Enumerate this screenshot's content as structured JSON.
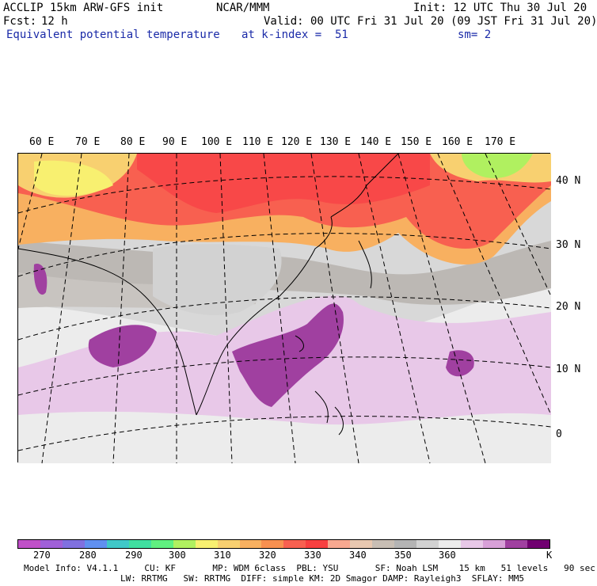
{
  "header": {
    "model": "ACCLIP 15km ARW-GFS init",
    "org": "NCAR/MMM",
    "init": "Init: 12 UTC Thu 30 Jul 20",
    "fcst_label": "Fcst:",
    "fcst_value": "12 h",
    "valid": "Valid: 00 UTC Fri 31 Jul 20 (09 JST Fri 31 Jul 20)",
    "field": "Equivalent potential temperature",
    "level": "at k-index =  51",
    "smooth": "sm= 2"
  },
  "map": {
    "lon_labels": [
      "60 E",
      "70 E",
      "80 E",
      "90 E",
      "100 E",
      "110 E",
      "120 E",
      "130 E",
      "140 E",
      "150 E",
      "160 E",
      "170 E"
    ],
    "lat_labels": [
      "40 N",
      "30 N",
      "20 N",
      "10 N",
      "0"
    ]
  },
  "colorbar": {
    "colors": [
      "#c050c8",
      "#a060d8",
      "#8070e0",
      "#6090f0",
      "#40c8c8",
      "#40e0a0",
      "#60f080",
      "#b0f060",
      "#f8f070",
      "#f8d070",
      "#f8b060",
      "#f89050",
      "#f86050",
      "#f84040",
      "#f8a890",
      "#e8c8b0",
      "#c8beb4",
      "#b4b4b4",
      "#d2d2d2",
      "#ececec",
      "#e8c8e8",
      "#d8a0d8",
      "#a040a0",
      "#700070"
    ],
    "ticks": [
      "270",
      "280",
      "290",
      "300",
      "310",
      "320",
      "330",
      "340",
      "350",
      "360"
    ],
    "unit": "K",
    "colors_meaning": "shading"
  },
  "footer": {
    "line1": "Model Info: V4.1.1     CU: KF       MP: WDM 6class  PBL: YSU       SF: Noah LSM    15 km   51 levels   90 sec",
    "line2": "LW: RRTMG   SW: RRTMG  DIFF: simple KM: 2D Smagor DAMP: Rayleigh3  SFLAY: MM5"
  }
}
